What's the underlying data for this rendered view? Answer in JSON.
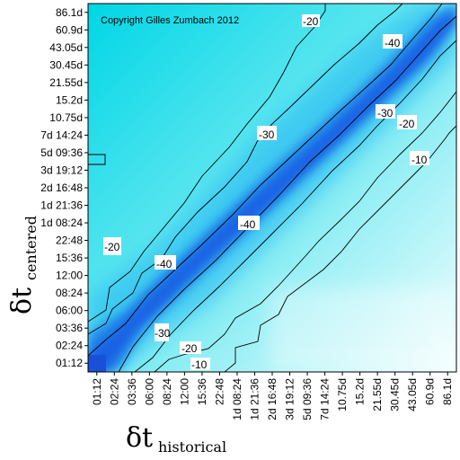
{
  "chart_data": {
    "type": "heatmap",
    "copyright": "Copyright Gilles Zumbach 2012",
    "x_axis": {
      "symbol": "δt",
      "subscript": "historical",
      "ticks": [
        "01:12",
        "02:24",
        "03:36",
        "06:00",
        "08:24",
        "12:00",
        "15:36",
        "22:48",
        "1d 08:24",
        "1d 21:36",
        "2d 16:48",
        "3d 19:12",
        "5d 09:36",
        "7d 14:24",
        "10.75d",
        "15.2d",
        "21.55d",
        "30.45d",
        "43.05d",
        "60.9d",
        "86.1d"
      ]
    },
    "y_axis": {
      "symbol": "δt",
      "subscript": "centered",
      "ticks": [
        "01:12",
        "02:24",
        "03:36",
        "06:00",
        "08:24",
        "12:00",
        "15:36",
        "22:48",
        "1d 08:24",
        "1d 21:36",
        "2d 16:48",
        "3d 19:12",
        "5d 09:36",
        "7d 14:24",
        "10.75d",
        "15.2d",
        "21.55d",
        "30.45d",
        "43.05d",
        "60.9d",
        "86.1d"
      ]
    },
    "contour_labels": [
      "-10",
      "-20",
      "-30",
      "-40"
    ],
    "contour_levels": [
      -10,
      -20,
      -30,
      -40
    ],
    "colors": {
      "strong": "#1a5ee8",
      "mid": "#3fa0f5",
      "weak": "#00d8e8",
      "background": "#ffffff"
    },
    "grid": false,
    "legend": "none"
  }
}
